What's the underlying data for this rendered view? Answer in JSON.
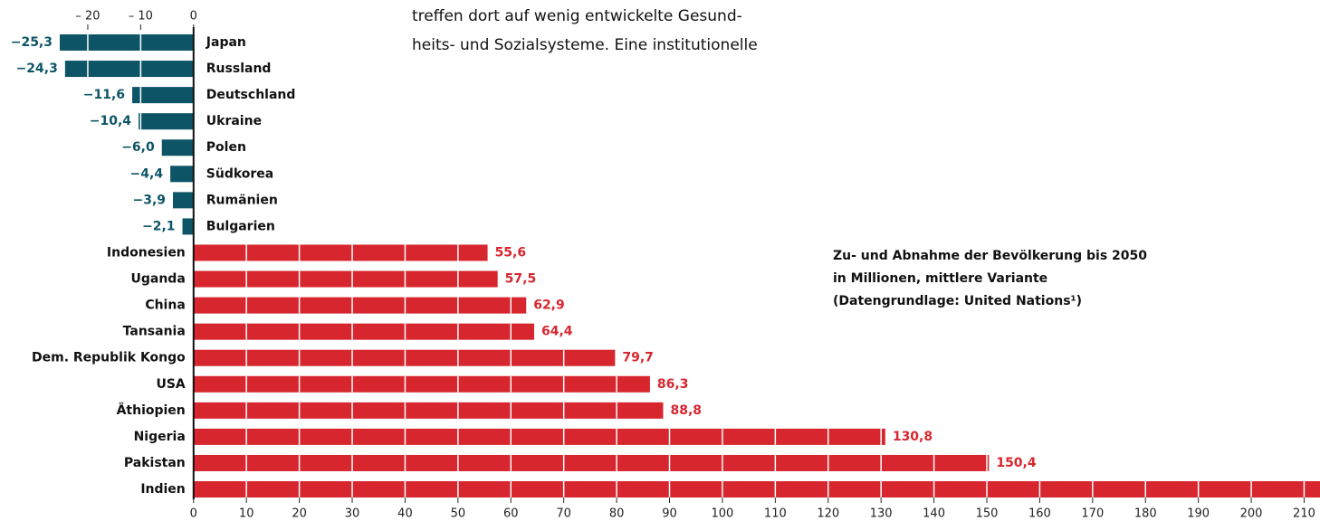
{
  "chart_data": {
    "type": "hbar",
    "title_lines": [
      "Zu- und Abnahme der Bevölkerung bis 2050",
      "in Millionen, mittlere Variante",
      "(Datengrundlage: United Nations¹)"
    ],
    "text_lines": [
      "treffen dort auf wenig entwickelte Gesund-",
      "heits- und Sozialsysteme. Eine institutionelle"
    ],
    "categories": [
      "Japan",
      "Russland",
      "Deutschland",
      "Ukraine",
      "Polen",
      "Südkorea",
      "Rumänien",
      "Bulgarien",
      "Indonesien",
      "Uganda",
      "China",
      "Tansania",
      "Dem. Republik Kongo",
      "USA",
      "Äthiopien",
      "Nigeria",
      "Pakistan",
      "Indien"
    ],
    "values": [
      -25.3,
      -24.3,
      -11.6,
      -10.4,
      -6.0,
      -4.4,
      -3.9,
      -2.1,
      55.6,
      57.5,
      62.9,
      64.4,
      79.7,
      86.3,
      88.8,
      130.8,
      150.4,
      213
    ],
    "value_labels": [
      "−25,3",
      "−24,3",
      "−11,6",
      "−10,4",
      "−6,0",
      "−4,4",
      "−3,9",
      "−2,1",
      "55,6",
      "57,5",
      "62,9",
      "64,4",
      "79,7",
      "86,3",
      "88,8",
      "130,8",
      "150,4",
      null
    ],
    "negative_color": "#0d5566",
    "positive_color": "#d7262e",
    "xlim": [
      -36.6,
      213
    ],
    "top_xticks": [
      {
        "value": -20,
        "label": "– 20"
      },
      {
        "value": -10,
        "label": "– 10"
      },
      0
    ],
    "xticks": [
      0,
      10,
      20,
      30,
      40,
      50,
      60,
      70,
      80,
      90,
      100,
      110,
      120,
      130,
      140,
      150,
      160,
      170,
      180,
      190,
      200,
      210
    ],
    "grid": true
  }
}
